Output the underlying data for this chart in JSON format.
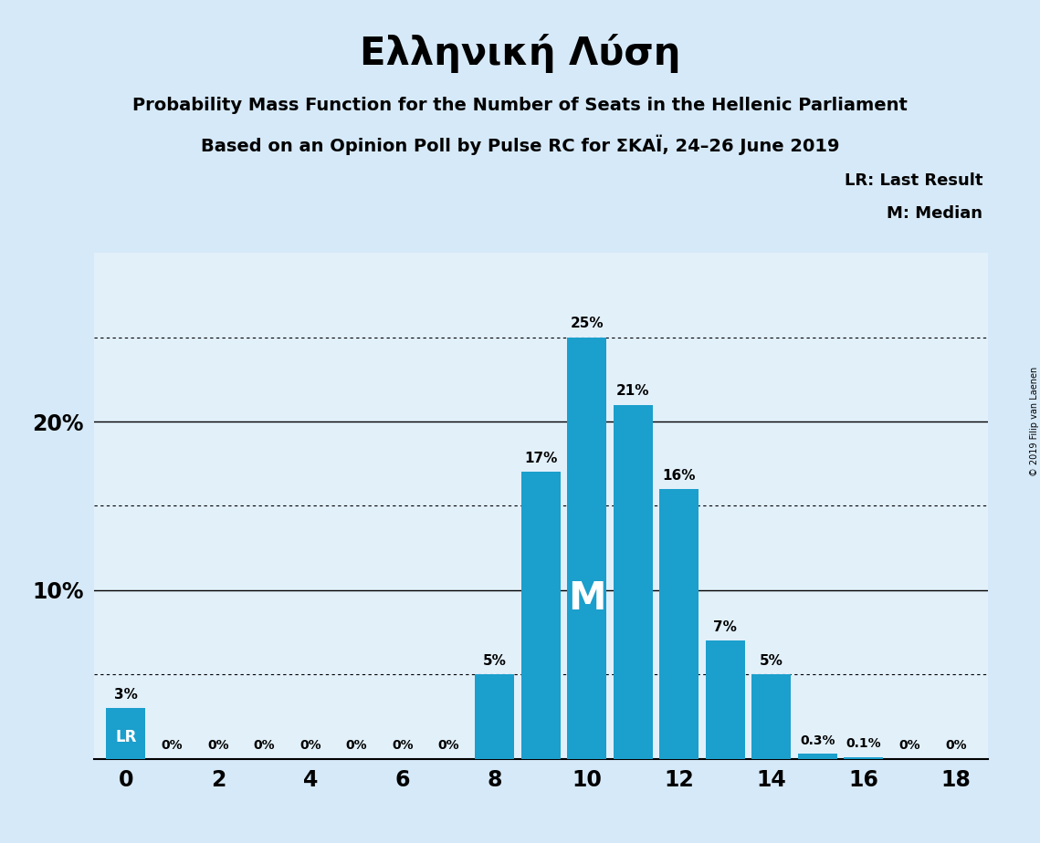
{
  "title": "Ελληνική Λύση",
  "subtitle1": "Probability Mass Function for the Number of Seats in the Hellenic Parliament",
  "subtitle2": "Based on an Opinion Poll by Pulse RC for ΣΚΑΪ, 24–26 June 2019",
  "copyright": "© 2019 Filip van Laenen",
  "seats": [
    0,
    1,
    2,
    3,
    4,
    5,
    6,
    7,
    8,
    9,
    10,
    11,
    12,
    13,
    14,
    15,
    16,
    17,
    18
  ],
  "probabilities": [
    3,
    0,
    0,
    0,
    0,
    0,
    0,
    0,
    5,
    17,
    25,
    21,
    16,
    7,
    5,
    0.3,
    0.1,
    0,
    0
  ],
  "bar_color": "#1B9FCC",
  "background_color": "#D6E9F8",
  "axis_bg_color": "#E2F0FA",
  "last_result_seat": 0,
  "median_seat": 10,
  "ymax": 30,
  "legend_lr": "LR: Last Result",
  "legend_m": "M: Median",
  "median_label": "M",
  "lr_label": "LR",
  "title_fontsize": 30,
  "subtitle_fontsize": 14,
  "bar_width": 0.85
}
